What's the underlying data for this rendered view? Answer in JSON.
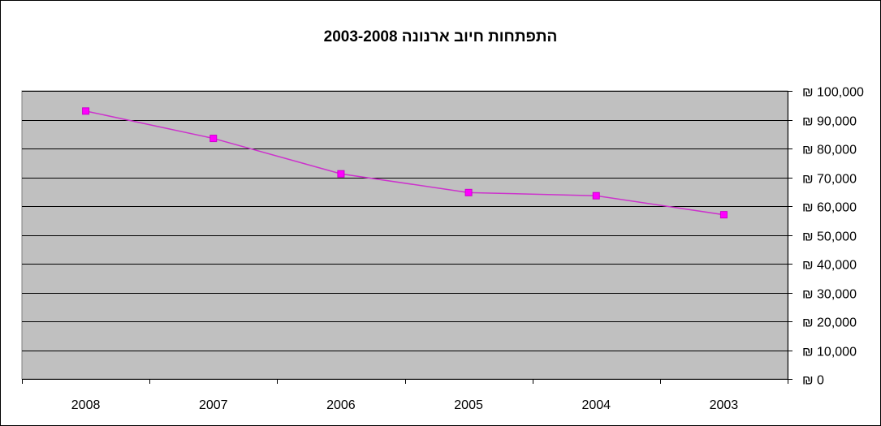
{
  "chart_data": {
    "type": "line",
    "title": "התפתחות חיוב ארנונה 2003-2008",
    "categories": [
      "2008",
      "2007",
      "2006",
      "2005",
      "2004",
      "2003"
    ],
    "series": [
      {
        "values": [
          93000,
          83500,
          71200,
          64700,
          63600,
          57000
        ]
      }
    ],
    "ylim": [
      0,
      100000
    ],
    "yticks": [
      0,
      10000,
      20000,
      30000,
      40000,
      50000,
      60000,
      70000,
      80000,
      90000,
      100000
    ],
    "ytick_labels": [
      "₪ 0",
      "₪ 10,000",
      "₪ 20,000",
      "₪ 30,000",
      "₪ 40,000",
      "₪ 50,000",
      "₪ 60,000",
      "₪ 70,000",
      "₪ 80,000",
      "₪ 90,000",
      "₪ 100,000"
    ],
    "y_axis_side": "right",
    "grid": true,
    "legend": false,
    "colors": {
      "plot_background": "#c0c0c0",
      "line": "#cc33cc",
      "marker": "#ff00ff",
      "grid": "#000000"
    }
  }
}
